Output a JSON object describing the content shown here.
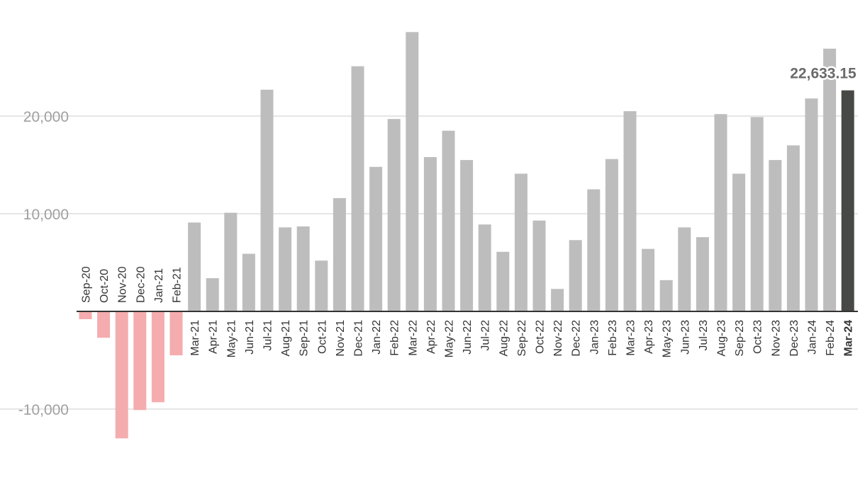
{
  "chart_data": {
    "type": "bar",
    "title": "",
    "xlabel": "",
    "ylabel": "",
    "ylim": [
      -13500,
      29500
    ],
    "yticks": [
      -10000,
      10000,
      20000
    ],
    "ytick_labels": [
      "-10,000",
      "10,000",
      "20,000"
    ],
    "grid": true,
    "categories": [
      "Sep-20",
      "Oct-20",
      "Nov-20",
      "Dec-20",
      "Jan-21",
      "Feb-21",
      "Mar-21",
      "Apr-21",
      "May-21",
      "Jun-21",
      "Jul-21",
      "Aug-21",
      "Sep-21",
      "Oct-21",
      "Nov-21",
      "Dec-21",
      "Jan-22",
      "Feb-22",
      "Mar-22",
      "Apr-22",
      "May-22",
      "Jun-22",
      "Jul-22",
      "Aug-22",
      "Sep-22",
      "Oct-22",
      "Nov-22",
      "Dec-22",
      "Jan-23",
      "Feb-23",
      "Mar-23",
      "Apr-23",
      "May-23",
      "Jun-23",
      "Jul-23",
      "Aug-23",
      "Sep-23",
      "Oct-23",
      "Nov-23",
      "Dec-23",
      "Jan-24",
      "Feb-24",
      "Mar-24"
    ],
    "values": [
      -800,
      -2700,
      -13000,
      -10100,
      -9300,
      -4500,
      9100,
      3400,
      10100,
      5900,
      22700,
      8600,
      8700,
      5200,
      11600,
      25100,
      14800,
      19700,
      28600,
      15800,
      18500,
      15500,
      8900,
      6100,
      14100,
      9300,
      2300,
      7300,
      12500,
      15600,
      20500,
      6400,
      3200,
      8600,
      7600,
      20200,
      14100,
      19900,
      15500,
      17000,
      21800,
      26900,
      22633.15
    ],
    "highlight": {
      "category": "Mar-24",
      "label": "22,633.15"
    },
    "colors": {
      "positive": "#bdbdbd",
      "negative": "#f4acae",
      "highlight": "#474945",
      "gridline": "#dddddd",
      "axis": "#333333"
    }
  }
}
